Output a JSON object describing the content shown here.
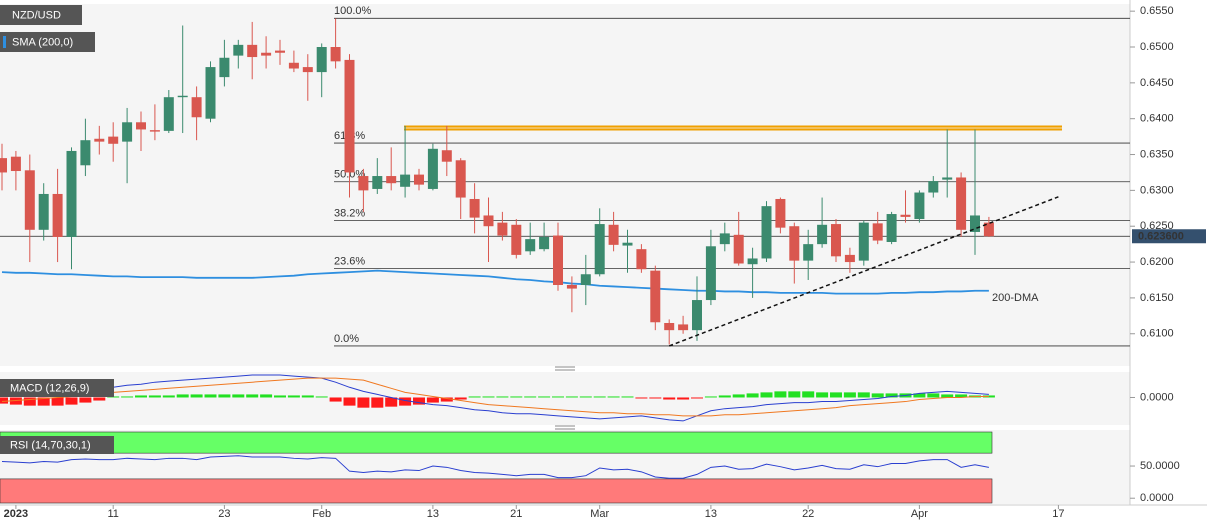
{
  "chart_data": [
    {
      "type": "candlestick",
      "symbol": "NZD/USD",
      "categories": [
        null,
        "2023",
        null,
        null,
        null,
        null,
        null,
        null,
        "11",
        null,
        null,
        null,
        null,
        null,
        null,
        null,
        "23",
        null,
        null,
        null,
        null,
        null,
        null,
        "Feb",
        null,
        null,
        null,
        null,
        null,
        null,
        null,
        "13",
        null,
        null,
        null,
        null,
        null,
        "21",
        null,
        null,
        null,
        null,
        null,
        "Mar",
        null,
        null,
        null,
        null,
        null,
        null,
        null,
        "13",
        null,
        null,
        null,
        null,
        null,
        null,
        "22",
        null,
        null,
        null,
        null,
        null,
        null,
        null,
        "Apr",
        null,
        null,
        null,
        null,
        null,
        null,
        null,
        null,
        null,
        "17"
      ],
      "open": [
        0.6345,
        0.6347,
        0.6328,
        0.6245,
        0.6295,
        0.6235,
        0.6335,
        0.6372,
        0.6375,
        0.6368,
        0.6395,
        0.6384,
        0.6383,
        0.643,
        0.643,
        0.64,
        0.6458,
        0.6488,
        0.6503,
        0.6492,
        0.6495,
        0.6478,
        0.6472,
        0.6465,
        0.65,
        0.6482,
        0.632,
        0.6302,
        0.632,
        0.6305,
        0.6322,
        0.6302,
        0.6356,
        0.6342,
        0.6288,
        0.6265,
        0.6255,
        0.6252,
        0.6215,
        0.6218,
        0.6237,
        0.6168,
        0.6168,
        0.6183,
        0.6252,
        0.6223,
        0.6218,
        0.6188,
        0.6115,
        0.6113,
        0.6105,
        0.6147,
        0.6225,
        0.6238,
        0.6197,
        0.6205,
        0.6288,
        0.625,
        0.6202,
        0.6225,
        0.6253,
        0.621,
        0.6202,
        0.6254,
        0.6228,
        0.6266,
        0.626,
        0.6297,
        0.6315,
        0.6318,
        0.6242,
        0.6255,
        null,
        null,
        null,
        null,
        null
      ],
      "high": [
        0.6365,
        0.6355,
        0.635,
        0.631,
        0.633,
        0.636,
        0.64,
        0.639,
        0.6395,
        0.6415,
        0.641,
        0.642,
        0.644,
        0.653,
        0.6445,
        0.648,
        0.651,
        0.651,
        0.6535,
        0.6515,
        0.651,
        0.6495,
        0.649,
        0.6505,
        0.654,
        0.649,
        0.633,
        0.6345,
        0.636,
        0.639,
        0.633,
        0.6365,
        0.639,
        0.6345,
        0.631,
        0.629,
        0.627,
        0.626,
        0.6255,
        0.6255,
        0.6255,
        0.618,
        0.621,
        0.6275,
        0.627,
        0.6245,
        0.6225,
        0.6195,
        0.612,
        0.6125,
        0.618,
        0.6245,
        0.6255,
        0.627,
        0.622,
        0.6285,
        0.629,
        0.6255,
        0.6245,
        0.629,
        0.626,
        0.622,
        0.6258,
        0.627,
        0.627,
        0.63,
        0.63,
        0.632,
        0.6385,
        0.6325,
        0.6385,
        0.6263,
        null,
        null,
        null,
        null,
        null
      ],
      "low": [
        0.63,
        0.63,
        0.62,
        0.623,
        0.62,
        0.619,
        0.632,
        0.635,
        0.634,
        0.631,
        0.6355,
        0.637,
        0.638,
        0.638,
        0.637,
        0.6395,
        0.6445,
        0.647,
        0.6455,
        0.647,
        0.6475,
        0.6465,
        0.6425,
        0.643,
        0.647,
        0.629,
        0.627,
        0.6295,
        0.63,
        0.629,
        0.63,
        0.63,
        0.632,
        0.626,
        0.624,
        0.62,
        0.623,
        0.6205,
        0.621,
        0.6215,
        0.616,
        0.613,
        0.614,
        0.618,
        0.6215,
        0.6185,
        0.6185,
        0.6105,
        0.6085,
        0.61,
        0.609,
        0.614,
        0.6215,
        0.6195,
        0.615,
        0.62,
        0.624,
        0.617,
        0.6175,
        0.622,
        0.62,
        0.6185,
        0.6195,
        0.6225,
        0.6225,
        0.6255,
        0.6255,
        0.629,
        0.629,
        0.6235,
        0.621,
        0.6235,
        null,
        null,
        null,
        null,
        null
      ],
      "close": [
        0.6325,
        0.6327,
        0.6245,
        0.6295,
        0.6235,
        0.6355,
        0.637,
        0.6368,
        0.6365,
        0.6395,
        0.6385,
        0.6382,
        0.643,
        0.6432,
        0.6402,
        0.6472,
        0.6485,
        0.6503,
        0.6486,
        0.6488,
        0.6492,
        0.647,
        0.6465,
        0.65,
        0.648,
        0.6325,
        0.63,
        0.632,
        0.631,
        0.6322,
        0.6308,
        0.6358,
        0.634,
        0.629,
        0.6262,
        0.625,
        0.6237,
        0.621,
        0.6232,
        0.6235,
        0.6168,
        0.6163,
        0.6183,
        0.6253,
        0.6224,
        0.6227,
        0.619,
        0.6116,
        0.6105,
        0.6105,
        0.6147,
        0.6222,
        0.624,
        0.6198,
        0.6205,
        0.6278,
        0.6248,
        0.6202,
        0.6225,
        0.6252,
        0.6208,
        0.62,
        0.6255,
        0.623,
        0.6267,
        0.6263,
        0.6297,
        0.6313,
        0.6318,
        0.6245,
        0.6265,
        0.6236,
        null,
        null,
        null,
        null,
        null
      ],
      "up_color": "#3b8a6e",
      "down_color": "#d9574f",
      "series": [
        {
          "name": "SMA (200,0)",
          "color": "#2e8fe0",
          "values": [
            0.6186,
            0.6185,
            0.6185,
            0.6184,
            0.6183,
            0.6183,
            0.6182,
            0.6181,
            0.618,
            0.618,
            0.6179,
            0.6179,
            0.6179,
            0.6179,
            0.6178,
            0.6178,
            0.6178,
            0.6178,
            0.6178,
            0.6179,
            0.618,
            0.6181,
            0.6183,
            0.6184,
            0.6185,
            0.6186,
            0.6187,
            0.6188,
            0.6187,
            0.6186,
            0.6185,
            0.6184,
            0.6183,
            0.6182,
            0.6181,
            0.618,
            0.6178,
            0.6176,
            0.6175,
            0.6173,
            0.6172,
            0.617,
            0.6169,
            0.6167,
            0.6166,
            0.6165,
            0.6164,
            0.6163,
            0.6162,
            0.6161,
            0.616,
            0.616,
            0.6159,
            0.6159,
            0.6158,
            0.6158,
            0.6157,
            0.6157,
            0.6157,
            0.6157,
            0.6156,
            0.6156,
            0.6156,
            0.6156,
            0.6157,
            0.6157,
            0.6158,
            0.6158,
            0.6159,
            0.6159,
            0.616,
            0.616,
            null,
            null,
            null,
            null,
            null
          ]
        }
      ],
      "annotation": "200-DMA",
      "fibonacci": [
        {
          "label": "100.0%",
          "value": 0.654
        },
        {
          "label": "61.8%",
          "value": 0.6366
        },
        {
          "label": "50.0%",
          "value": 0.6312
        },
        {
          "label": "38.2%",
          "value": 0.6258
        },
        {
          "label": "23.6%",
          "value": 0.6191
        },
        {
          "label": "0.0%",
          "value": 0.6083
        }
      ],
      "resistance": {
        "color": "#f0a000",
        "values": [
          0.6389,
          0.6385
        ]
      },
      "trendline": {
        "x": [
          48,
          76
        ],
        "y": [
          0.6083,
          0.6291
        ]
      },
      "last_price": {
        "value": 0.6236,
        "label": "0.623600"
      },
      "ylim": [
        0.6055,
        0.656
      ],
      "yticks": [
        {
          "value": 0.655,
          "label": "0.6550"
        },
        {
          "value": 0.65,
          "label": "0.6500"
        },
        {
          "value": 0.645,
          "label": "0.6450"
        },
        {
          "value": 0.64,
          "label": "0.6400"
        },
        {
          "value": 0.635,
          "label": "0.6350"
        },
        {
          "value": 0.63,
          "label": "0.6300"
        },
        {
          "value": 0.625,
          "label": "0.6250"
        },
        {
          "value": 0.62,
          "label": "0.6200"
        },
        {
          "value": 0.615,
          "label": "0.6150"
        },
        {
          "value": 0.61,
          "label": "0.6100"
        }
      ]
    },
    {
      "type": "macd",
      "title": "MACD (12,26,9)",
      "series": [
        {
          "name": "MACD",
          "color": "#2a3fd0",
          "values": [
            0.0001,
            0.0002,
            0.0003,
            0.0004,
            0.0006,
            0.0007,
            0.0008,
            0.0009,
            0.001,
            0.0012,
            0.0013,
            0.0015,
            0.0016,
            0.0017,
            0.0018,
            0.0019,
            0.002,
            0.0021,
            0.0022,
            0.0022,
            0.0022,
            0.0021,
            0.002,
            0.0019,
            0.0015,
            0.001,
            0.0006,
            0.0003,
            0,
            -0.0003,
            -0.0005,
            -0.0007,
            -0.0008,
            -0.001,
            -0.0012,
            -0.0013,
            -0.0015,
            -0.0016,
            -0.0016,
            -0.0017,
            -0.0018,
            -0.0019,
            -0.002,
            -0.0021,
            -0.002,
            -0.0019,
            -0.0018,
            -0.002,
            -0.0022,
            -0.0023,
            -0.0018,
            -0.0013,
            -0.0011,
            -0.001,
            -0.0009,
            -0.0007,
            -0.0006,
            -0.0005,
            -0.0005,
            -0.0004,
            -0.0004,
            -0.0003,
            -0.0002,
            -0.0001,
            0.0001,
            0.0002,
            0.0004,
            0.0005,
            0.0006,
            0.0005,
            0.0004,
            0.0003
          ]
        },
        {
          "name": "Signal",
          "color": "#f07820",
          "values": [
            -0.0004,
            -0.0003,
            -0.0002,
            -0.0001,
            0,
            0.0001,
            0.0003,
            0.0004,
            0.0005,
            0.0006,
            0.0007,
            0.0008,
            0.0009,
            0.001,
            0.0011,
            0.0012,
            0.0013,
            0.0014,
            0.0015,
            0.0016,
            0.0017,
            0.0018,
            0.0019,
            0.0019,
            0.0019,
            0.0018,
            0.0017,
            0.0013,
            0.0009,
            0.0005,
            0.0003,
            0.0001,
            -0.0001,
            -0.0003,
            -0.0005,
            -0.0007,
            -0.0008,
            -0.0009,
            -0.001,
            -0.0011,
            -0.0012,
            -0.0013,
            -0.0014,
            -0.0015,
            -0.0015,
            -0.0016,
            -0.0016,
            -0.0017,
            -0.0017,
            -0.0018,
            -0.0018,
            -0.0018,
            -0.0017,
            -0.0017,
            -0.0016,
            -0.0015,
            -0.0014,
            -0.0013,
            -0.0012,
            -0.0011,
            -0.001,
            -0.0008,
            -0.0007,
            -0.0006,
            -0.0005,
            -0.0004,
            -0.0002,
            -0.0001,
            0,
            0,
            0.0001,
            0.0001
          ]
        }
      ],
      "histogram": [
        -0.0006,
        -0.0007,
        -0.0008,
        -0.0008,
        -0.0008,
        -0.0007,
        -0.0005,
        -0.0003,
        0.0001,
        0.0001,
        0.0002,
        0.0002,
        0.0002,
        0.0003,
        0.0003,
        0.0003,
        0.0003,
        0.0003,
        0.0003,
        0.0003,
        0.0002,
        0.0002,
        0.0002,
        0.0001,
        -0.0004,
        -0.0008,
        -0.001,
        -0.001,
        -0.0009,
        -0.0008,
        -0.0007,
        -0.0005,
        -0.0004,
        -0.0002,
        0.0001,
        0.0001,
        0.0001,
        0.0001,
        0.0001,
        0.0001,
        0.0001,
        0.0001,
        0.0001,
        0.0001,
        0.0001,
        0.0001,
        -0.0001,
        -0.0001,
        -0.0002,
        -0.0002,
        -0.0001,
        0.0001,
        0.0002,
        0.0003,
        0.0004,
        0.0005,
        0.0006,
        0.0006,
        0.0006,
        0.0005,
        0.0005,
        0.0005,
        0.0005,
        0.0004,
        0.0004,
        0.0004,
        0.0004,
        0.0004,
        0.0003,
        0.0003,
        0.0002,
        0.0002
      ],
      "up_color": "#22e022",
      "down_color": "#ff1a1a",
      "ylim": [
        -0.0027,
        0.0025
      ],
      "yticks": [
        {
          "value": 0,
          "label": "0.0000"
        }
      ]
    },
    {
      "type": "rsi",
      "title": "RSI (14,70,30,1)",
      "color": "#2a3fd0",
      "values": [
        57,
        56,
        55,
        57,
        56,
        60,
        61,
        60,
        60,
        62,
        61,
        60,
        62,
        62,
        60,
        64,
        65,
        66,
        64,
        64,
        64,
        62,
        61,
        63,
        62,
        42,
        40,
        42,
        41,
        44,
        43,
        50,
        48,
        43,
        40,
        39,
        37,
        35,
        37,
        37,
        32,
        32,
        35,
        47,
        44,
        45,
        41,
        33,
        31,
        31,
        37,
        48,
        50,
        45,
        46,
        53,
        49,
        44,
        47,
        51,
        46,
        45,
        52,
        49,
        54,
        54,
        58,
        60,
        60,
        48,
        52,
        48
      ],
      "bands": {
        "upper": 70,
        "lower": 30,
        "upper_color": "#66ff66",
        "lower_color": "#ff7a7a"
      },
      "ylim": [
        -9,
        106
      ],
      "yticks": [
        {
          "value": 50,
          "label": "50.0000"
        },
        {
          "value": 0,
          "label": "0.0000"
        }
      ]
    }
  ]
}
